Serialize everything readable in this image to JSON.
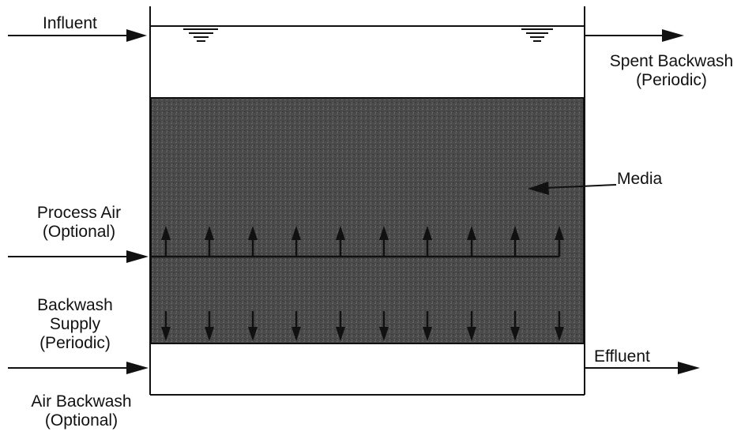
{
  "labels": {
    "influent": "Influent",
    "spent_backwash_1": "Spent Backwash",
    "spent_backwash_2": "(Periodic)",
    "media": "Media",
    "process_air_1": "Process Air",
    "process_air_2": "(Optional)",
    "backwash_supply_1": "Backwash",
    "backwash_supply_2": "Supply",
    "backwash_supply_3": "(Periodic)",
    "effluent": "Effluent",
    "air_backwash_1": "Air Backwash",
    "air_backwash_2": "(Optional)"
  },
  "colors": {
    "line": "#111111",
    "media_fill": "#4a4a4a"
  },
  "icons": {
    "water_level": "water-level-icon",
    "flow_arrow": "arrow-right-icon"
  }
}
